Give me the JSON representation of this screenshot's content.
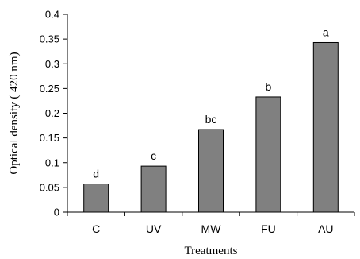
{
  "chart_data": {
    "type": "bar",
    "categories": [
      "C",
      "UV",
      "MW",
      "FU",
      "AU"
    ],
    "values": [
      0.057,
      0.093,
      0.167,
      0.233,
      0.343
    ],
    "data_labels": [
      "d",
      "c",
      "bc",
      "b",
      "a"
    ],
    "xlabel": "Treatments",
    "ylabel": "Optical density ( 420 nm)",
    "ylim": [
      0,
      0.4
    ],
    "yticks": [
      0,
      0.05,
      0.1,
      0.15,
      0.2,
      0.25,
      0.3,
      0.35,
      0.4
    ],
    "ytick_labels": [
      "0",
      "0.05",
      "0.1",
      "0.15",
      "0.2",
      "0.25",
      "0.3",
      "0.35",
      "0.4"
    ],
    "grid": false,
    "legend": "none",
    "colors": {
      "bar_fill": "#808080",
      "bar_stroke": "#000000",
      "axis": "#000000"
    }
  }
}
